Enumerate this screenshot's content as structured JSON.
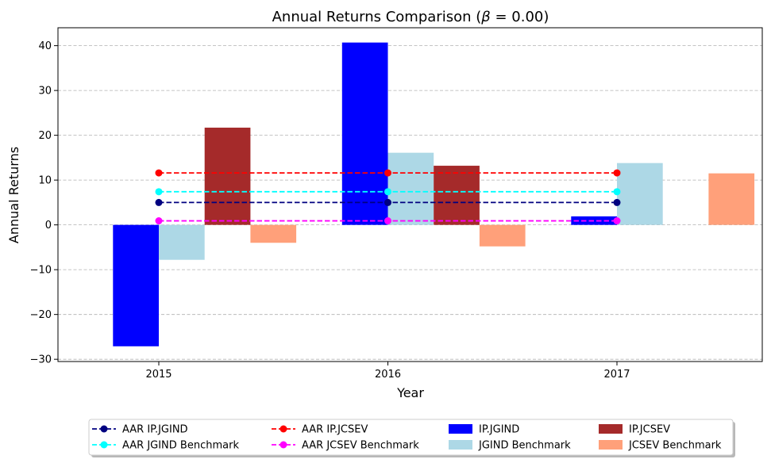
{
  "chart_data": {
    "type": "bar",
    "title": "Annual Returns Comparison (β = 0.00)",
    "title_prefix": "Annual Returns Comparison (",
    "title_beta": "β",
    "title_suffix": " = 0.00)",
    "xlabel": "Year",
    "ylabel": "Annual Returns",
    "ylim": [
      -30.5,
      44
    ],
    "yticks": [
      -30,
      -20,
      -10,
      0,
      10,
      20,
      30,
      40
    ],
    "ytick_labels": [
      "−30",
      "−20",
      "−10",
      "0",
      "10",
      "20",
      "30",
      "40"
    ],
    "categories": [
      "2015",
      "2016",
      "2017"
    ],
    "grid": "horizontal dashed",
    "legend_position": "bottom-center",
    "bar_series": [
      {
        "name": "IP.JGIND",
        "color": "#0000ff",
        "values": [
          -27.1,
          40.7,
          1.9
        ]
      },
      {
        "name": "JGIND Benchmark",
        "color": "#add8e6",
        "values": [
          -7.8,
          16.1,
          13.8
        ]
      },
      {
        "name": "IP.JCSEV",
        "color": "#a52a2a",
        "values": [
          21.7,
          13.2,
          0.0
        ]
      },
      {
        "name": "JCSEV Benchmark",
        "color": "#ffa07a",
        "values": [
          -4.0,
          -4.8,
          11.5
        ]
      }
    ],
    "line_series": [
      {
        "name": "AAR IP.JGIND",
        "color": "#000080",
        "value": 5.0
      },
      {
        "name": "AAR JGIND Benchmark",
        "color": "#00ffff",
        "value": 7.4
      },
      {
        "name": "AAR IP.JCSEV",
        "color": "#ff0000",
        "value": 11.6
      },
      {
        "name": "AAR JCSEV Benchmark",
        "color": "#ff00ff",
        "value": 0.9
      }
    ],
    "legend_order": [
      [
        "AAR IP.JGIND",
        "AAR IP.JCSEV",
        "IP.JGIND",
        "IP.JCSEV"
      ],
      [
        "AAR JGIND Benchmark",
        "AAR JCSEV Benchmark",
        "JGIND Benchmark",
        "JCSEV Benchmark"
      ]
    ]
  }
}
